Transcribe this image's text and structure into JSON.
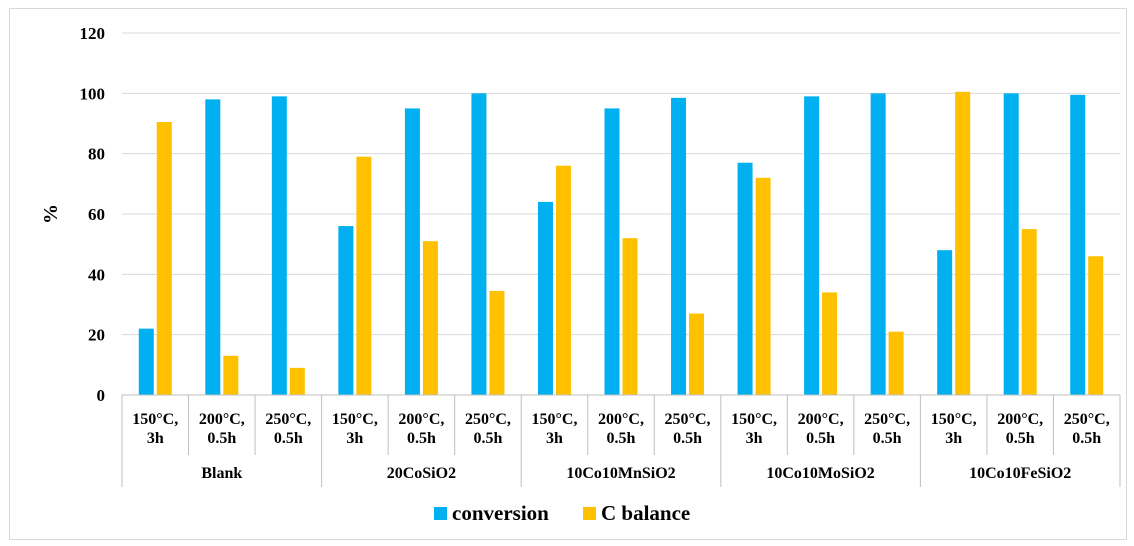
{
  "chart_data": {
    "type": "bar",
    "title": "",
    "xlabel": "",
    "ylabel": "%",
    "ylim": [
      0,
      120
    ],
    "yticks": [
      0,
      20,
      40,
      60,
      80,
      100,
      120
    ],
    "grid": true,
    "legend_position": "bottom",
    "groups": [
      {
        "name": "Blank",
        "categories": [
          [
            "150°C,",
            "3h"
          ],
          [
            "200°C,",
            "0.5h"
          ],
          [
            "250°C,",
            "0.5h"
          ]
        ]
      },
      {
        "name": "20CoSiO2",
        "categories": [
          [
            "150°C,",
            "3h"
          ],
          [
            "200°C,",
            "0.5h"
          ],
          [
            "250°C,",
            "0.5h"
          ]
        ]
      },
      {
        "name": "10Co10MnSiO2",
        "categories": [
          [
            "150°C,",
            "3h"
          ],
          [
            "200°C,",
            "0.5h"
          ],
          [
            "250°C,",
            "0.5h"
          ]
        ]
      },
      {
        "name": "10Co10MoSiO2",
        "categories": [
          [
            "150°C,",
            "3h"
          ],
          [
            "200°C,",
            "0.5h"
          ],
          [
            "250°C,",
            "0.5h"
          ]
        ]
      },
      {
        "name": "10Co10FeSiO2",
        "categories": [
          [
            "150°C,",
            "3h"
          ],
          [
            "200°C,",
            "0.5h"
          ],
          [
            "250°C,",
            "0.5h"
          ]
        ]
      }
    ],
    "series": [
      {
        "name": "conversion",
        "color": "#00b0f0",
        "values": [
          22,
          98,
          99,
          56,
          95,
          100,
          64,
          95,
          98.5,
          77,
          99,
          100,
          48,
          100,
          99.5
        ]
      },
      {
        "name": "C balance",
        "color": "#ffc000",
        "values": [
          90.5,
          13,
          9,
          79,
          51,
          34.5,
          76,
          52,
          27,
          72,
          34,
          21,
          100.5,
          55,
          46
        ]
      }
    ]
  }
}
